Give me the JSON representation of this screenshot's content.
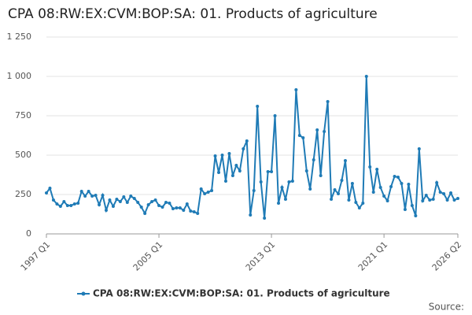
{
  "chart_data": {
    "type": "line",
    "title": "CPA 08:RW:EX:CVM:BOP:SA: 01. Products of agriculture",
    "source": "Source:",
    "categories": [
      "1997 Q1",
      null,
      null,
      null,
      null,
      null,
      null,
      null,
      null,
      null,
      null,
      null,
      null,
      null,
      null,
      null,
      null,
      null,
      null,
      null,
      null,
      null,
      null,
      null,
      null,
      null,
      null,
      null,
      null,
      null,
      null,
      null,
      "2005 Q1",
      null,
      null,
      null,
      null,
      null,
      null,
      null,
      null,
      null,
      null,
      null,
      null,
      null,
      null,
      null,
      null,
      null,
      null,
      null,
      null,
      null,
      null,
      null,
      null,
      null,
      null,
      null,
      null,
      null,
      null,
      null,
      "2013 Q1",
      null,
      null,
      null,
      null,
      null,
      null,
      null,
      null,
      null,
      null,
      null,
      null,
      null,
      null,
      null,
      null,
      null,
      null,
      null,
      null,
      null,
      null,
      null,
      null,
      null,
      null,
      null,
      null,
      null,
      null,
      null,
      "2021 Q1",
      null,
      null,
      null,
      null,
      null,
      null,
      null,
      null,
      null,
      null,
      null,
      null,
      null,
      null,
      null,
      null,
      null,
      null,
      null,
      null,
      "2026 Q2"
    ],
    "series": [
      {
        "name": "CPA 08:RW:EX:CVM:BOP:SA: 01. Products of agriculture",
        "color": "#1f7bb6",
        "values": [
          260,
          290,
          215,
          190,
          175,
          205,
          180,
          180,
          190,
          195,
          270,
          240,
          270,
          240,
          245,
          185,
          245,
          150,
          215,
          175,
          220,
          205,
          235,
          200,
          240,
          225,
          200,
          170,
          130,
          185,
          205,
          215,
          180,
          170,
          200,
          195,
          160,
          165,
          165,
          150,
          190,
          145,
          140,
          130,
          285,
          255,
          265,
          275,
          495,
          390,
          500,
          335,
          510,
          370,
          435,
          400,
          540,
          590,
          120,
          275,
          810,
          330,
          100,
          395,
          395,
          750,
          195,
          295,
          220,
          330,
          335,
          915,
          625,
          610,
          400,
          285,
          470,
          660,
          370,
          650,
          840,
          220,
          280,
          255,
          340,
          465,
          215,
          320,
          200,
          165,
          195,
          1000,
          425,
          265,
          410,
          295,
          240,
          210,
          300,
          365,
          360,
          320,
          155,
          315,
          180,
          115,
          540,
          210,
          245,
          215,
          220,
          325,
          265,
          255,
          215,
          260,
          215,
          225
        ]
      }
    ],
    "ylim": [
      0,
      1250
    ],
    "yticks": [
      0,
      250,
      500,
      750,
      {
        "value": 1000,
        "label": "1 000"
      },
      {
        "value": 1250,
        "label": "1 250"
      }
    ],
    "grid": true
  }
}
